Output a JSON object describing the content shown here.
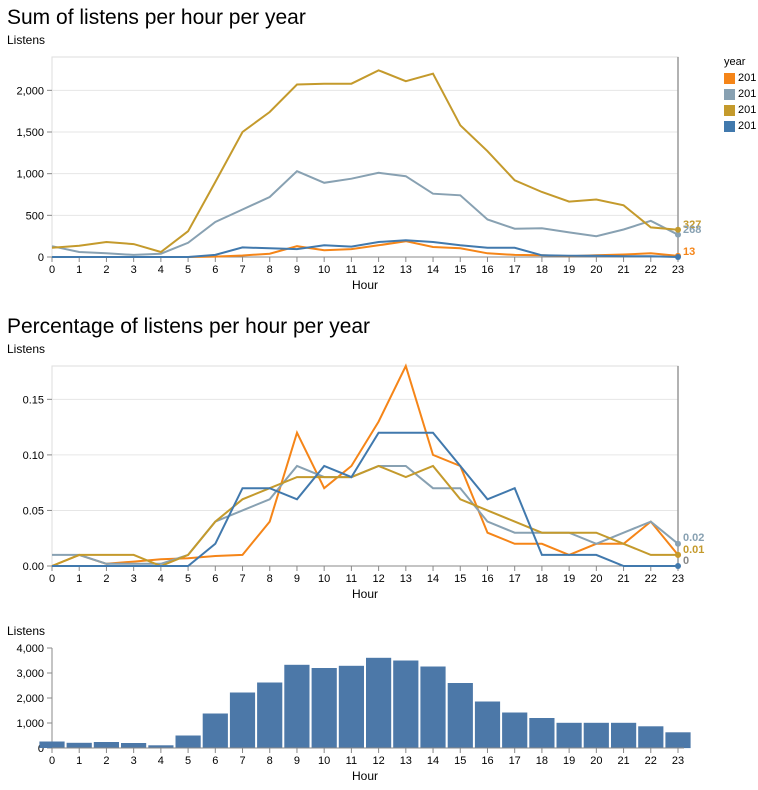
{
  "charts": {
    "sum_title": "Sum of listens per hour per year",
    "pct_title": "Percentage of listens per hour per year",
    "sum_ylabel": "Listens",
    "pct_ylabel": "Listens",
    "bar_ylabel": "Listens",
    "xlabel": "Hour"
  },
  "legend": {
    "title": "year",
    "items": [
      {
        "label": "201",
        "color": "#f58518"
      },
      {
        "label": "201",
        "color": "#88a1b2"
      },
      {
        "label": "201",
        "color": "#c49a2c"
      },
      {
        "label": "201",
        "color": "#4179ad"
      }
    ]
  },
  "end_labels": {
    "sum": [
      {
        "text": "327",
        "color": "#c49a2c"
      },
      {
        "text": "268",
        "color": "#88a1b2"
      },
      {
        "text": "13",
        "color": "#f58518"
      }
    ],
    "pct": [
      {
        "text": "0.02",
        "color": "#88a1b2"
      },
      {
        "text": "0.01",
        "color": "#c49a2c"
      },
      {
        "text": "0",
        "color": "#888888"
      }
    ]
  },
  "chart_data": [
    {
      "type": "line",
      "title": "Sum of listens per hour per year",
      "xlabel": "Hour",
      "ylabel": "Listens",
      "ylim": [
        0,
        2400
      ],
      "yticks": [
        "0",
        "500",
        "1,000",
        "1,500",
        "2,000"
      ],
      "ytick_values": [
        0,
        500,
        1000,
        1500,
        2000
      ],
      "x": [
        0,
        1,
        2,
        3,
        4,
        5,
        6,
        7,
        8,
        9,
        10,
        11,
        12,
        13,
        14,
        15,
        16,
        17,
        18,
        19,
        20,
        21,
        22,
        23
      ],
      "grid": true,
      "legend": "right",
      "series": [
        {
          "color": "#f58518",
          "values": [
            0,
            0,
            0,
            0,
            0,
            0,
            5,
            18,
            40,
            130,
            80,
            95,
            140,
            190,
            120,
            105,
            45,
            25,
            20,
            10,
            20,
            30,
            45,
            13
          ]
        },
        {
          "color": "#88a1b2",
          "values": [
            130,
            60,
            45,
            25,
            40,
            170,
            420,
            570,
            720,
            1030,
            890,
            940,
            1010,
            970,
            760,
            740,
            450,
            340,
            345,
            295,
            250,
            330,
            435,
            268
          ]
        },
        {
          "color": "#c49a2c",
          "values": [
            110,
            135,
            180,
            155,
            60,
            310,
            900,
            1500,
            1740,
            2070,
            2080,
            2080,
            2240,
            2110,
            2200,
            1580,
            1270,
            920,
            780,
            665,
            690,
            620,
            355,
            327
          ]
        },
        {
          "color": "#4179ad",
          "values": [
            0,
            0,
            0,
            0,
            0,
            0,
            25,
            115,
            105,
            95,
            140,
            125,
            180,
            200,
            180,
            140,
            110,
            110,
            20,
            15,
            15,
            10,
            10,
            0
          ]
        }
      ]
    },
    {
      "type": "line",
      "title": "Percentage of listens per hour per year",
      "xlabel": "Hour",
      "ylabel": "Listens",
      "ylim": [
        0,
        0.18
      ],
      "yticks": [
        "0.00",
        "0.05",
        "0.10",
        "0.15"
      ],
      "ytick_values": [
        0,
        0.05,
        0.1,
        0.15
      ],
      "x": [
        0,
        1,
        2,
        3,
        4,
        5,
        6,
        7,
        8,
        9,
        10,
        11,
        12,
        13,
        14,
        15,
        16,
        17,
        18,
        19,
        20,
        21,
        22,
        23
      ],
      "grid": true,
      "series": [
        {
          "color": "#f58518",
          "values": [
            0,
            0.01,
            0.002,
            0.004,
            0.006,
            0.007,
            0.009,
            0.01,
            0.04,
            0.12,
            0.07,
            0.09,
            0.13,
            0.18,
            0.1,
            0.09,
            0.03,
            0.02,
            0.02,
            0.01,
            0.02,
            0.02,
            0.04,
            0.01
          ]
        },
        {
          "color": "#88a1b2",
          "values": [
            0.01,
            0.01,
            0.002,
            0.002,
            0.002,
            0.01,
            0.04,
            0.05,
            0.06,
            0.09,
            0.08,
            0.08,
            0.09,
            0.09,
            0.07,
            0.07,
            0.04,
            0.03,
            0.03,
            0.03,
            0.02,
            0.03,
            0.04,
            0.02
          ]
        },
        {
          "color": "#c49a2c",
          "values": [
            0,
            0.01,
            0.01,
            0.01,
            0,
            0.01,
            0.04,
            0.06,
            0.07,
            0.08,
            0.08,
            0.08,
            0.09,
            0.08,
            0.09,
            0.06,
            0.05,
            0.04,
            0.03,
            0.03,
            0.03,
            0.02,
            0.01,
            0.01
          ]
        },
        {
          "color": "#4179ad",
          "values": [
            0,
            0,
            0,
            0,
            0,
            0,
            0.02,
            0.07,
            0.07,
            0.06,
            0.09,
            0.08,
            0.12,
            0.12,
            0.12,
            0.09,
            0.06,
            0.07,
            0.01,
            0.01,
            0.01,
            0,
            0,
            0
          ]
        }
      ]
    },
    {
      "type": "bar",
      "xlabel": "Hour",
      "ylabel": "Listens",
      "ylim": [
        0,
        4000
      ],
      "yticks": [
        "0",
        "1,000",
        "2,000",
        "3,000",
        "4,000"
      ],
      "ytick_values": [
        0,
        1000,
        2000,
        3000,
        4000
      ],
      "categories": [
        "0",
        "1",
        "2",
        "3",
        "4",
        "5",
        "6",
        "7",
        "8",
        "9",
        "10",
        "11",
        "12",
        "13",
        "14",
        "15",
        "16",
        "17",
        "18",
        "19",
        "20",
        "21",
        "22",
        "23"
      ],
      "values": [
        260,
        210,
        240,
        200,
        110,
        500,
        1380,
        2220,
        2620,
        3330,
        3200,
        3290,
        3610,
        3500,
        3260,
        2600,
        1860,
        1420,
        1200,
        1010,
        1010,
        1010,
        870,
        630
      ],
      "color": "#4c78a8"
    }
  ]
}
